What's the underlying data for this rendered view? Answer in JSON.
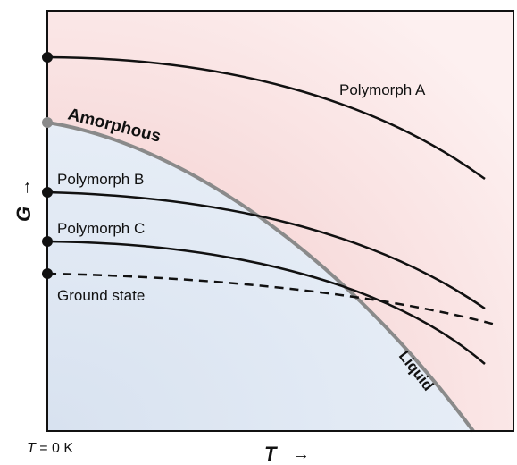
{
  "labels": {
    "polymorph_a": "Polymorph A",
    "amorphous": "Amorphous",
    "polymorph_b": "Polymorph B",
    "polymorph_c": "Polymorph C",
    "ground_state": "Ground state",
    "liquid": "Liquid",
    "y_axis": "G",
    "y_arrow": "→",
    "x_axis": "T",
    "x_arrow": "→",
    "t_zero_var": "T",
    "t_zero_rest": " = 0 K"
  },
  "colors": {
    "upper_region": "#f5d6d6",
    "lower_region": "#dde6f2",
    "boundary": "#8a8a8a",
    "curves": "#111111"
  }
}
